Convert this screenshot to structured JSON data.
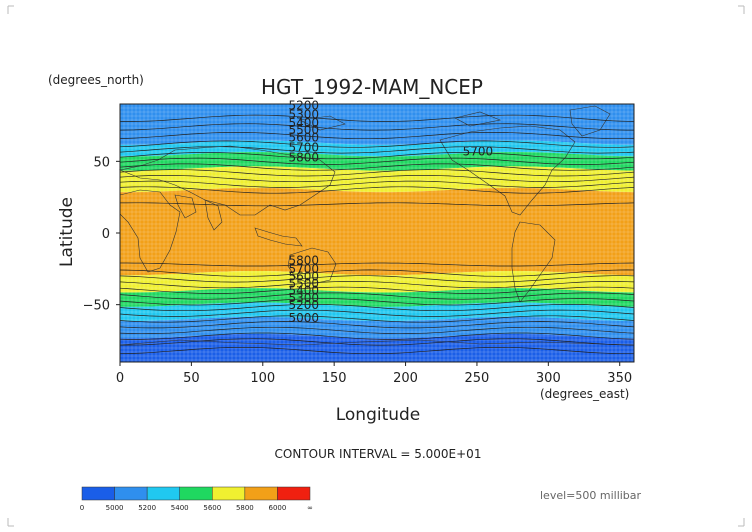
{
  "title": "HGT_1992-MAM_NCEP",
  "y_units": "(degrees_north)",
  "x_units": "(degrees_east)",
  "xlabel": "Longitude",
  "ylabel": "Latitude",
  "x_ticks": [
    "0",
    "50",
    "100",
    "150",
    "200",
    "250",
    "300",
    "350"
  ],
  "y_ticks": [
    "50",
    "0",
    "−50"
  ],
  "contour_interval_text": "CONTOUR INTERVAL = 5.000E+01",
  "level_text": "level=500 millibar",
  "contour_labels": [
    "5200",
    "5300",
    "5400",
    "5500",
    "5600",
    "5700",
    "5800",
    "5700",
    "5800",
    "5700",
    "5600",
    "5500",
    "5400",
    "5300",
    "5200",
    "5000"
  ],
  "legend": {
    "labels": [
      "0",
      "5000",
      "5200",
      "5400",
      "5600",
      "5800",
      "6000",
      "∞"
    ],
    "colors": [
      "#1a5ee8",
      "#2f8fee",
      "#20c8f0",
      "#1fd860",
      "#f0f030",
      "#f2a018",
      "#f02010"
    ]
  },
  "chart_data": {
    "type": "heatmap",
    "variable": "HGT",
    "xlim": [
      0,
      360
    ],
    "ylim": [
      -90,
      90
    ],
    "bands": [
      {
        "lat_min": 63,
        "lat_max": 90,
        "color": "#2f8fee"
      },
      {
        "lat_min": 55,
        "lat_max": 63,
        "color": "#20c8f0"
      },
      {
        "lat_min": 45,
        "lat_max": 55,
        "color": "#1fd860"
      },
      {
        "lat_min": 30,
        "lat_max": 45,
        "color": "#f0f030"
      },
      {
        "lat_min": -28,
        "lat_max": 30,
        "color": "#f2a018"
      },
      {
        "lat_min": -40,
        "lat_max": -28,
        "color": "#f0f030"
      },
      {
        "lat_min": -50,
        "lat_max": -40,
        "color": "#1fd860"
      },
      {
        "lat_min": -60,
        "lat_max": -50,
        "color": "#20c8f0"
      },
      {
        "lat_min": -72,
        "lat_max": -60,
        "color": "#2f8fee"
      },
      {
        "lat_min": -90,
        "lat_max": -72,
        "color": "#1a5ee8"
      }
    ]
  }
}
